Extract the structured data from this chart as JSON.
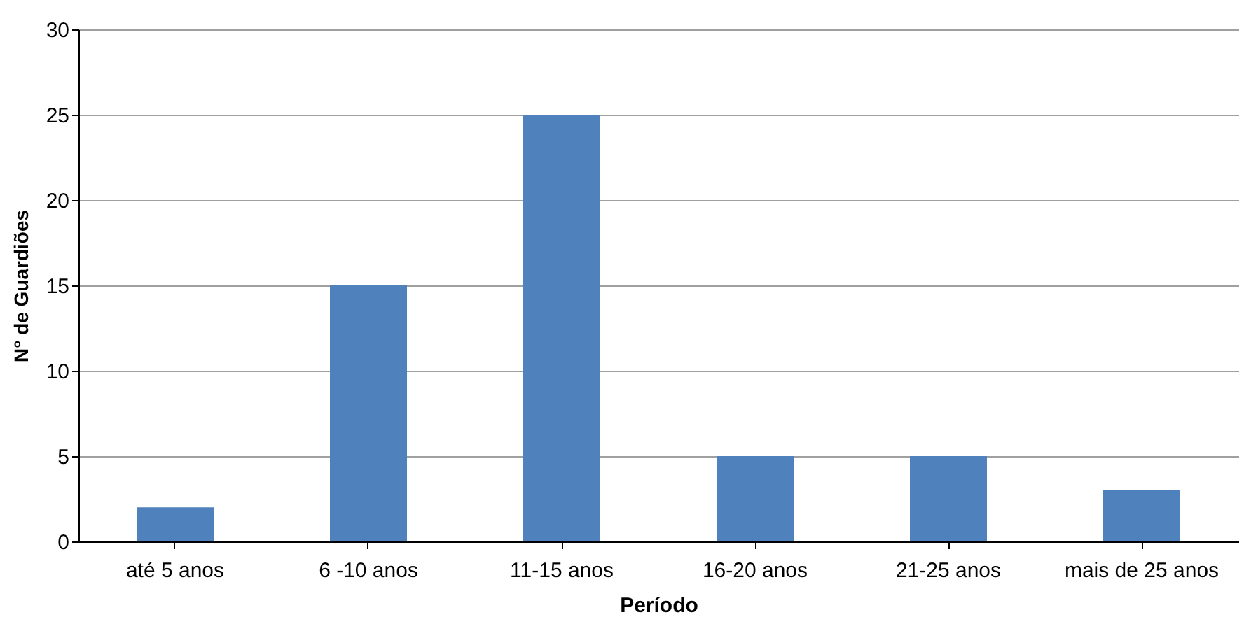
{
  "chart_data": {
    "type": "bar",
    "xlabel": "Período",
    "ylabel": "N° de Guardiões",
    "categories": [
      "até 5 anos",
      "6 -10 anos",
      "11-15 anos",
      "16-20 anos",
      "21-25 anos",
      "mais de 25 anos"
    ],
    "values": [
      2,
      15,
      25,
      5,
      5,
      3
    ],
    "color": "#4f81bd",
    "ylim": [
      0,
      30
    ],
    "yticks": [
      0,
      5,
      10,
      15,
      20,
      25,
      30
    ],
    "grid": "y"
  }
}
